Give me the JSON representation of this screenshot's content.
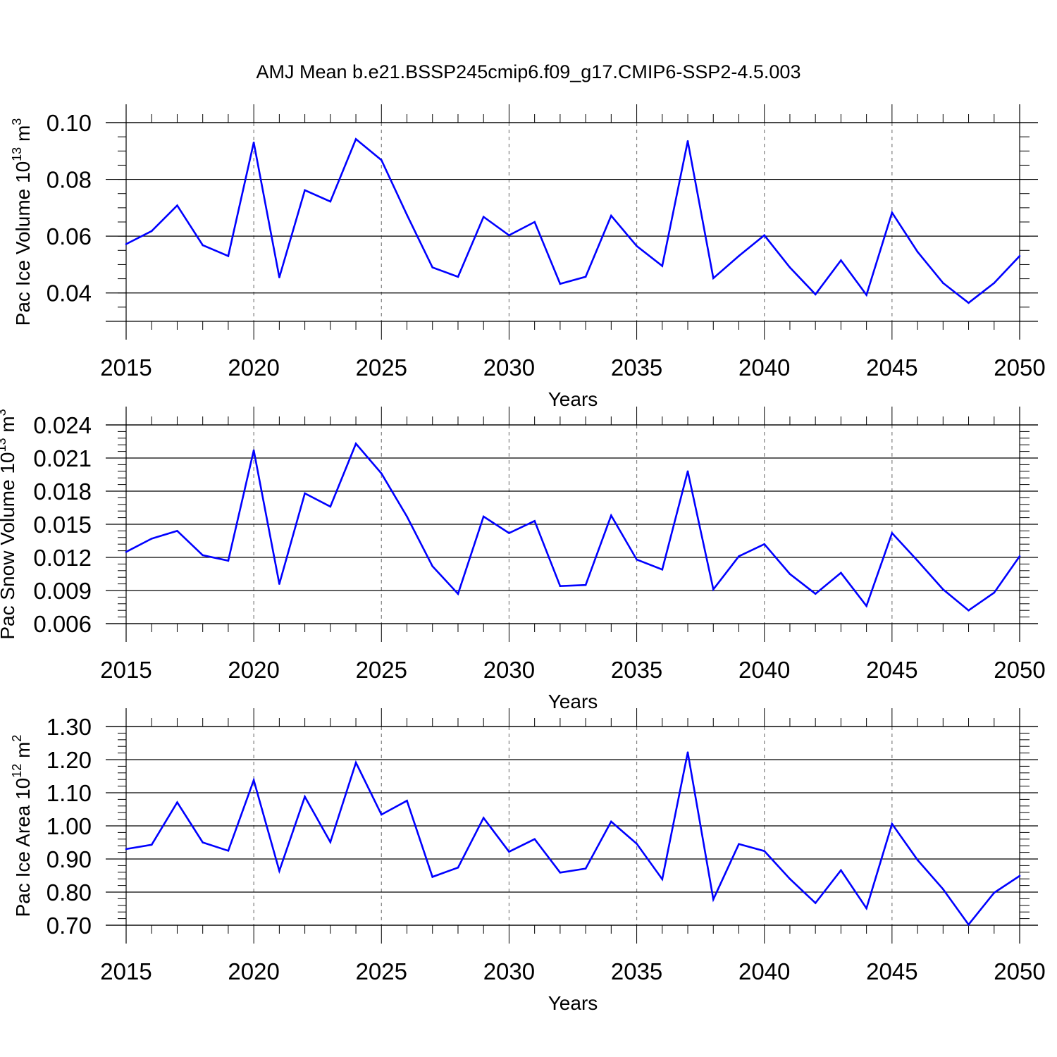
{
  "title": "AMJ Mean b.e21.BSSP245cmip6.f09_g17.CMIP6-SSP2-4.5.003",
  "colors": {
    "line": "#0000ff",
    "axis": "#000000",
    "grid": "#808080",
    "background": "#ffffff"
  },
  "chart_data": [
    {
      "type": "line",
      "xlabel": "Years",
      "ylabel": {
        "text": "Pac Ice Volume 10",
        "sup": "13",
        "unit": " m",
        "unit_sup": "3"
      },
      "xlim": [
        2015,
        2050
      ],
      "ylim": [
        0.03,
        0.1
      ],
      "y_ticks": [
        "0.04",
        "0.06",
        "0.08",
        "0.10"
      ],
      "y_tick_values": [
        0.04,
        0.06,
        0.08,
        0.1
      ],
      "y_minor_step": 0.005,
      "x_ticks": [
        "2015",
        "2020",
        "2025",
        "2030",
        "2035",
        "2040",
        "2045",
        "2050"
      ],
      "x_tick_values": [
        2015,
        2020,
        2025,
        2030,
        2035,
        2040,
        2045,
        2050
      ],
      "grid": "x-dashed",
      "x": [
        2015,
        2016,
        2017,
        2018,
        2019,
        2020,
        2021,
        2022,
        2023,
        2024,
        2025,
        2026,
        2027,
        2028,
        2029,
        2030,
        2031,
        2032,
        2033,
        2034,
        2035,
        2036,
        2037,
        2038,
        2039,
        2040,
        2041,
        2042,
        2043,
        2044,
        2045,
        2046,
        2047,
        2048,
        2049,
        2050
      ],
      "values": [
        0.0572,
        0.0618,
        0.0708,
        0.0568,
        0.053,
        0.093,
        0.0455,
        0.0762,
        0.0722,
        0.0942,
        0.0868,
        0.0675,
        0.049,
        0.0457,
        0.0668,
        0.0603,
        0.065,
        0.0432,
        0.0457,
        0.0672,
        0.0565,
        0.0495,
        0.0935,
        0.0452,
        0.053,
        0.0603,
        0.049,
        0.0395,
        0.0515,
        0.0393,
        0.0683,
        0.0545,
        0.0435,
        0.0365,
        0.0435,
        0.053
      ]
    },
    {
      "type": "line",
      "xlabel": "Years",
      "ylabel": {
        "text": "Pac Snow Volume 10",
        "sup": "13",
        "unit": " m",
        "unit_sup": "3"
      },
      "xlim": [
        2015,
        2050
      ],
      "ylim": [
        0.006,
        0.024
      ],
      "y_ticks": [
        "0.006",
        "0.009",
        "0.012",
        "0.015",
        "0.018",
        "0.021",
        "0.024"
      ],
      "y_tick_values": [
        0.006,
        0.009,
        0.012,
        0.015,
        0.018,
        0.021,
        0.024
      ],
      "y_minor_step": 0.0006,
      "x_ticks": [
        "2015",
        "2020",
        "2025",
        "2030",
        "2035",
        "2040",
        "2045",
        "2050"
      ],
      "x_tick_values": [
        2015,
        2020,
        2025,
        2030,
        2035,
        2040,
        2045,
        2050
      ],
      "grid": "x-dashed",
      "x": [
        2015,
        2016,
        2017,
        2018,
        2019,
        2020,
        2021,
        2022,
        2023,
        2024,
        2025,
        2026,
        2027,
        2028,
        2029,
        2030,
        2031,
        2032,
        2033,
        2034,
        2035,
        2036,
        2037,
        2038,
        2039,
        2040,
        2041,
        2042,
        2043,
        2044,
        2045,
        2046,
        2047,
        2048,
        2049,
        2050
      ],
      "values": [
        0.0125,
        0.0137,
        0.0144,
        0.0122,
        0.0117,
        0.0217,
        0.0096,
        0.0178,
        0.0166,
        0.0223,
        0.0196,
        0.0157,
        0.0112,
        0.0087,
        0.0157,
        0.0142,
        0.0153,
        0.0094,
        0.0095,
        0.0158,
        0.0118,
        0.0109,
        0.0198,
        0.0091,
        0.0121,
        0.0132,
        0.0105,
        0.0087,
        0.0106,
        0.0076,
        0.0142,
        0.0117,
        0.0091,
        0.0072,
        0.0088,
        0.0121
      ]
    },
    {
      "type": "line",
      "xlabel": "Years",
      "ylabel": {
        "text": "Pac Ice Area 10",
        "sup": "12",
        "unit": " m",
        "unit_sup": "2"
      },
      "xlim": [
        2015,
        2050
      ],
      "ylim": [
        0.7,
        1.3
      ],
      "y_ticks": [
        "0.70",
        "0.80",
        "0.90",
        "1.00",
        "1.10",
        "1.20",
        "1.30"
      ],
      "y_tick_values": [
        0.7,
        0.8,
        0.9,
        1.0,
        1.1,
        1.2,
        1.3
      ],
      "y_minor_step": 0.02,
      "x_ticks": [
        "2015",
        "2020",
        "2025",
        "2030",
        "2035",
        "2040",
        "2045",
        "2050"
      ],
      "x_tick_values": [
        2015,
        2020,
        2025,
        2030,
        2035,
        2040,
        2045,
        2050
      ],
      "grid": "x-dashed",
      "x": [
        2015,
        2016,
        2017,
        2018,
        2019,
        2020,
        2021,
        2022,
        2023,
        2024,
        2025,
        2026,
        2027,
        2028,
        2029,
        2030,
        2031,
        2032,
        2033,
        2034,
        2035,
        2036,
        2037,
        2038,
        2039,
        2040,
        2041,
        2042,
        2043,
        2044,
        2045,
        2046,
        2047,
        2048,
        2049,
        2050
      ],
      "values": [
        0.93,
        0.943,
        1.071,
        0.95,
        0.925,
        1.138,
        0.864,
        1.088,
        0.951,
        1.191,
        1.034,
        1.076,
        0.846,
        0.874,
        1.024,
        0.922,
        0.96,
        0.859,
        0.871,
        1.013,
        0.946,
        0.839,
        1.222,
        0.778,
        0.945,
        0.924,
        0.84,
        0.767,
        0.866,
        0.751,
        1.006,
        0.897,
        0.809,
        0.702,
        0.798,
        0.849
      ]
    }
  ]
}
